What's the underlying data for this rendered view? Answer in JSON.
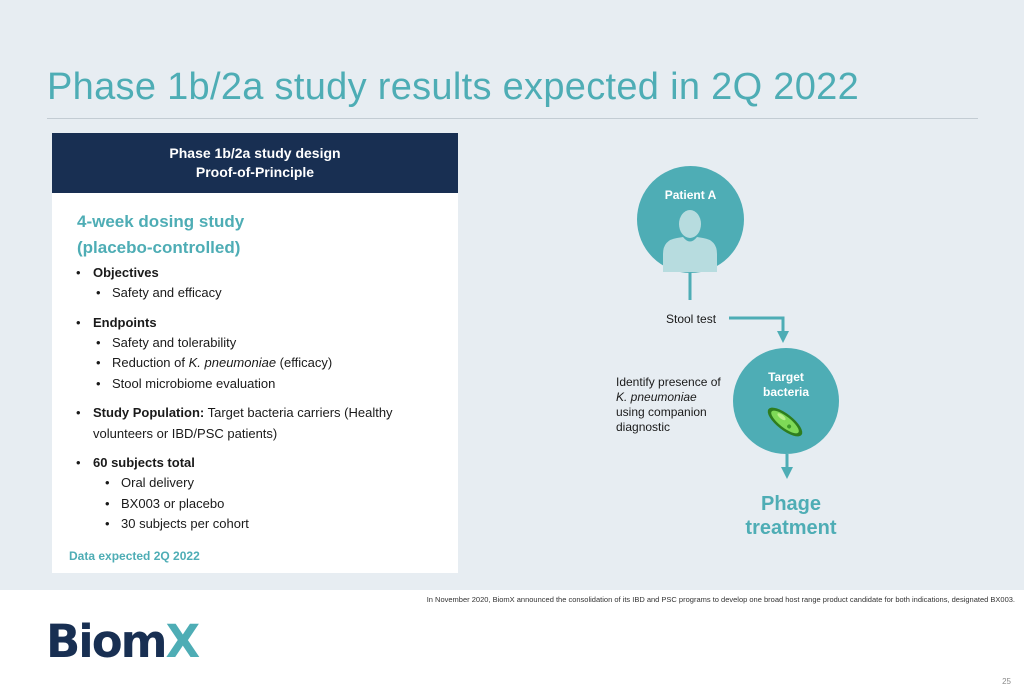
{
  "title": "Phase 1b/2a study results expected in 2Q 2022",
  "card": {
    "header_line1": "Phase 1b/2a study design",
    "header_line2": "Proof-of-Principle",
    "study_title_line1": "4-week dosing study",
    "study_title_line2": "(placebo-controlled)",
    "objectives": {
      "label": "Objectives",
      "items": [
        "Safety and efficacy"
      ]
    },
    "endpoints": {
      "label": "Endpoints",
      "items": {
        "safety": "Safety and tolerability",
        "reduction_prefix": "Reduction of ",
        "reduction_species": "K. pneumoniae",
        "reduction_suffix": " (efficacy)",
        "microbiome": "Stool microbiome evaluation"
      }
    },
    "population": {
      "label": "Study Population:",
      "text_line1": " Target bacteria carriers (Healthy",
      "text_line2": "volunteers or IBD/PSC patients)"
    },
    "subjects": {
      "label": "60 subjects total",
      "items": [
        "Oral delivery",
        "BX003 or placebo",
        "30 subjects per cohort"
      ]
    },
    "footer": "Data expected 2Q 2022"
  },
  "flow": {
    "patient_label": "Patient A",
    "stool_test": "Stool test",
    "identify_line1": "Identify presence of",
    "identify_species": "K. pneumoniae",
    "identify_line3": "using companion",
    "identify_line4": "diagnostic",
    "target_line1": "Target",
    "target_line2": "bacteria",
    "phage_line1": "Phage",
    "phage_line2": "treatment",
    "accent_color": "#4eadb5"
  },
  "footnote": "In November 2020, BiomX announced the consolidation of its IBD and PSC programs to develop one broad host range product candidate for both indications, designated BX003.",
  "logo": {
    "part1": "Biom",
    "part2": "X"
  },
  "page_number": "25"
}
